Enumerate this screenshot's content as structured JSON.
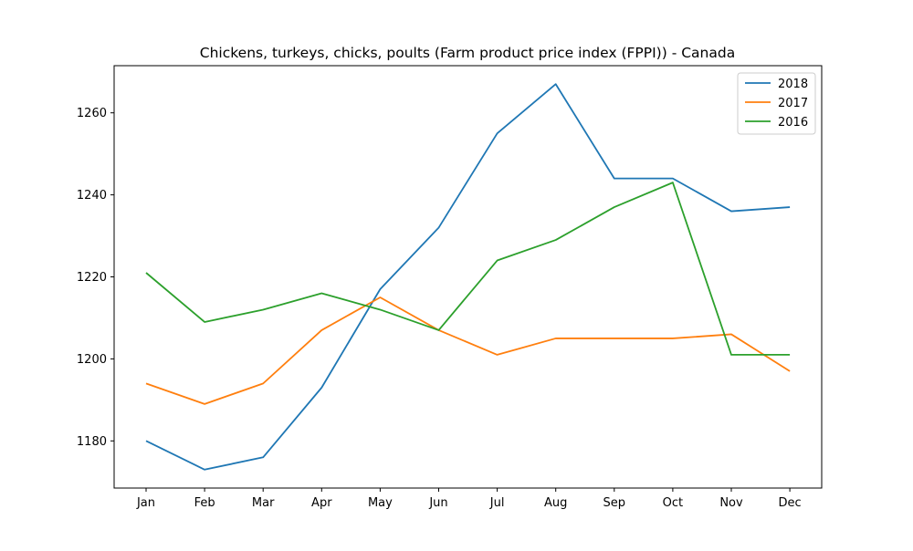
{
  "chart_data": {
    "type": "line",
    "title": "Chickens, turkeys, chicks, poults (Farm product price index (FPPI)) - Canada",
    "xlabel": "",
    "ylabel": "",
    "categories": [
      "Jan",
      "Feb",
      "Mar",
      "Apr",
      "May",
      "Jun",
      "Jul",
      "Aug",
      "Sep",
      "Oct",
      "Nov",
      "Dec"
    ],
    "ylim": [
      1168.5,
      1271.5
    ],
    "yticks": [
      1180,
      1200,
      1220,
      1240,
      1260
    ],
    "grid": false,
    "legend_position": "top-right",
    "series": [
      {
        "name": "2018",
        "color": "#1f77b4",
        "values": [
          1180,
          1173,
          1176,
          1193,
          1217,
          1232,
          1255,
          1267,
          1244,
          1244,
          1236,
          1237
        ]
      },
      {
        "name": "2017",
        "color": "#ff7f0e",
        "values": [
          1194,
          1189,
          1194,
          1207,
          1215,
          1207,
          1201,
          1205,
          1205,
          1205,
          1206,
          1197
        ]
      },
      {
        "name": "2016",
        "color": "#2ca02c",
        "values": [
          1221,
          1209,
          1212,
          1216,
          1212,
          1207,
          1224,
          1229,
          1237,
          1243,
          1201,
          1201
        ]
      }
    ]
  }
}
